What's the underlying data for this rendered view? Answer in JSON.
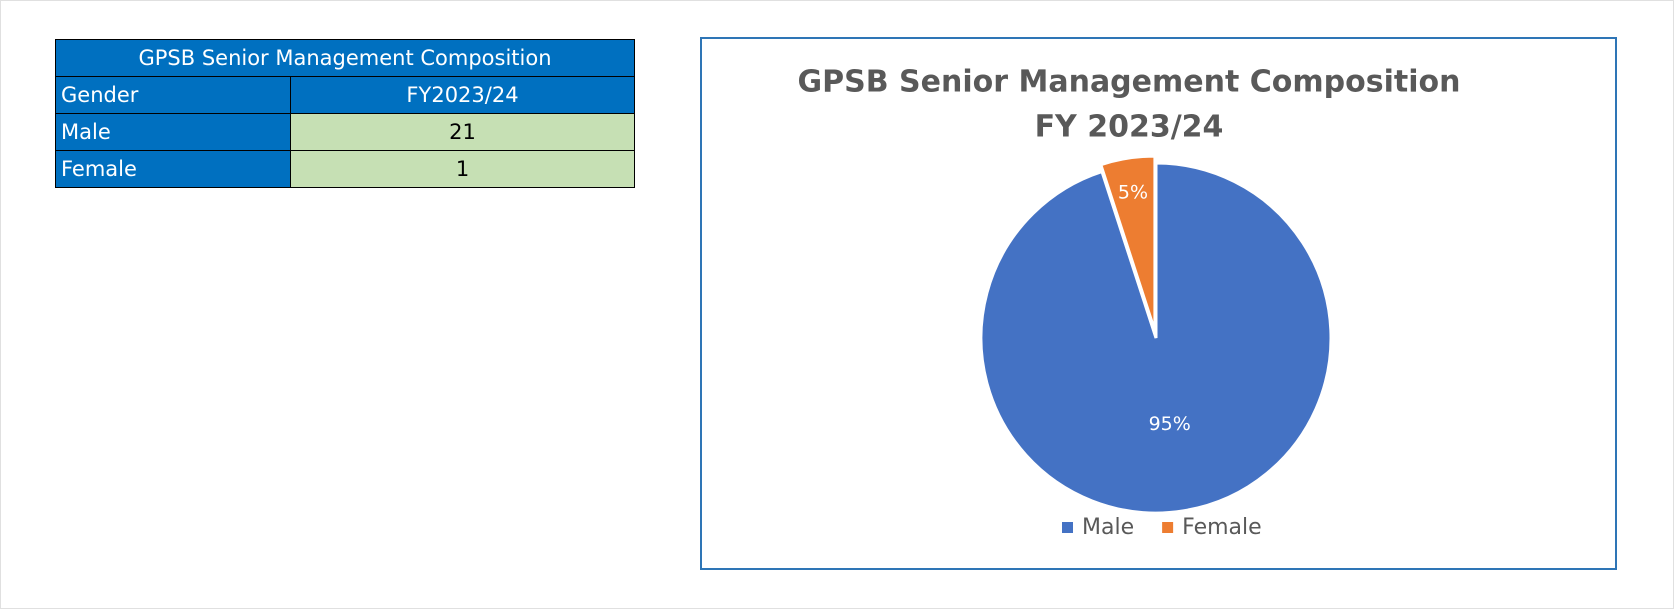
{
  "table": {
    "title": "GPSB Senior Management Composition",
    "header": [
      "Gender",
      "FY2023/24"
    ],
    "rows": [
      [
        "Male",
        21
      ],
      [
        "Female",
        1
      ]
    ]
  },
  "chart_data": {
    "type": "pie",
    "title": "GPSB Senior Management Composition",
    "subtitle": "FY 2023/24",
    "categories": [
      "Male",
      "Female"
    ],
    "values": [
      95,
      5
    ],
    "value_labels": [
      "95%",
      "5%"
    ],
    "colors": [
      "#4472c4",
      "#ed7d31"
    ],
    "legend": "bottom"
  }
}
